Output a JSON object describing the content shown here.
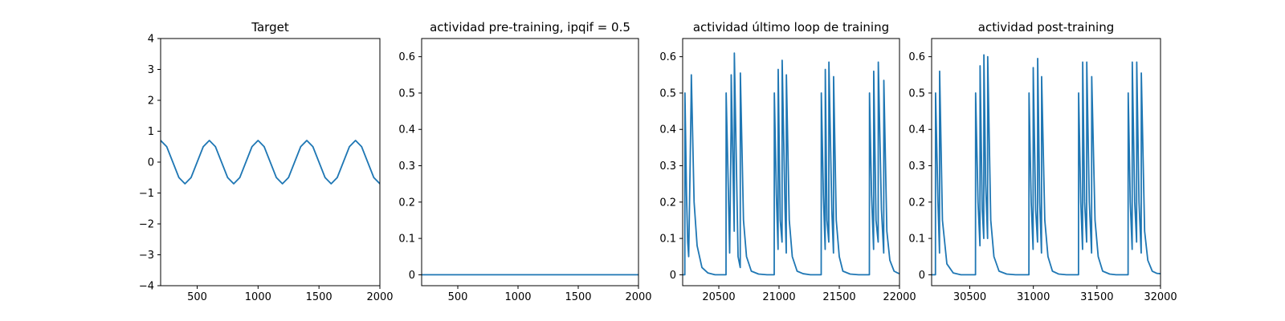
{
  "chart_data": [
    {
      "type": "line",
      "title": "Target",
      "xlabel": "",
      "ylabel": "",
      "xlim": [
        200,
        2000
      ],
      "ylim": [
        -4,
        4
      ],
      "xticks": [
        500,
        1000,
        1500,
        2000
      ],
      "yticks": [
        -4,
        -3,
        -2,
        -1,
        0,
        1,
        2,
        3,
        4
      ],
      "line_color": "#1f77b4",
      "series": [
        {
          "x": [
            200,
            250,
            300,
            350,
            400,
            450,
            500,
            550,
            600,
            650,
            700,
            750,
            800,
            850,
            900,
            950,
            1000,
            1050,
            1100,
            1150,
            1200,
            1250,
            1300,
            1350,
            1400,
            1450,
            1500,
            1550,
            1600,
            1650,
            1700,
            1750,
            1800,
            1850,
            1900,
            1950,
            2000
          ],
          "y": [
            0.7,
            0.5,
            0.0,
            -0.5,
            -0.7,
            -0.5,
            0.0,
            0.5,
            0.7,
            0.5,
            0.0,
            -0.5,
            -0.7,
            -0.5,
            0.0,
            0.5,
            0.7,
            0.5,
            0.0,
            -0.5,
            -0.7,
            -0.5,
            0.0,
            0.5,
            0.7,
            0.5,
            0.0,
            -0.5,
            -0.7,
            -0.5,
            0.0,
            0.5,
            0.7,
            0.5,
            0.0,
            -0.5,
            -0.7
          ]
        }
      ]
    },
    {
      "type": "line",
      "title": "actividad pre-training, ipqif = 0.5",
      "xlabel": "",
      "ylabel": "",
      "xlim": [
        200,
        2000
      ],
      "ylim": [
        -0.03,
        0.65
      ],
      "xticks": [
        500,
        1000,
        1500,
        2000
      ],
      "yticks": [
        0.0,
        0.1,
        0.2,
        0.3,
        0.4,
        0.5,
        0.6
      ],
      "line_color": "#1f77b4",
      "series": [
        {
          "x": [
            200,
            2000
          ],
          "y": [
            0.0,
            0.0
          ]
        }
      ]
    },
    {
      "type": "line",
      "title": "actividad último loop de training",
      "xlabel": "",
      "ylabel": "",
      "xlim": [
        20200,
        22000
      ],
      "ylim": [
        -0.03,
        0.65
      ],
      "xticks": [
        20500,
        21000,
        21500,
        22000
      ],
      "yticks": [
        0.0,
        0.1,
        0.2,
        0.3,
        0.4,
        0.5,
        0.6
      ],
      "line_color": "#1f77b4",
      "series": [
        {
          "x": [
            20200,
            20218,
            20219,
            20232,
            20242,
            20250,
            20262,
            20270,
            20272,
            20295,
            20320,
            20360,
            20410,
            20470,
            20560,
            20561,
            20580,
            20590,
            20602,
            20603,
            20628,
            20629,
            20660,
            20678,
            20679,
            20705,
            20730,
            20770,
            20830,
            20900,
            20960,
            20961,
            20978,
            20992,
            20993,
            21010,
            21025,
            21026,
            21050,
            21060,
            21061,
            21085,
            21110,
            21150,
            21200,
            21260,
            21350,
            21351,
            21368,
            21383,
            21384,
            21398,
            21413,
            21414,
            21438,
            21452,
            21453,
            21475,
            21500,
            21530,
            21590,
            21660,
            21750,
            21751,
            21768,
            21785,
            21786,
            21805,
            21823,
            21824,
            21850,
            21869,
            21870,
            21895,
            21920,
            21955,
            21985,
            22000
          ],
          "y": [
            0.0,
            0.0,
            0.5,
            0.22,
            0.09,
            0.05,
            0.3,
            0.48,
            0.55,
            0.2,
            0.08,
            0.02,
            0.005,
            0.0,
            0.0,
            0.5,
            0.22,
            0.06,
            0.4,
            0.55,
            0.12,
            0.61,
            0.05,
            0.02,
            0.555,
            0.15,
            0.05,
            0.01,
            0.002,
            0.0,
            0.0,
            0.5,
            0.22,
            0.07,
            0.565,
            0.15,
            0.09,
            0.59,
            0.18,
            0.06,
            0.55,
            0.15,
            0.05,
            0.01,
            0.003,
            0.0,
            0.0,
            0.5,
            0.22,
            0.07,
            0.565,
            0.15,
            0.09,
            0.585,
            0.18,
            0.06,
            0.545,
            0.15,
            0.05,
            0.01,
            0.002,
            0.0,
            0.0,
            0.5,
            0.22,
            0.07,
            0.56,
            0.15,
            0.09,
            0.585,
            0.18,
            0.06,
            0.535,
            0.12,
            0.04,
            0.01,
            0.005,
            0.003
          ]
        }
      ]
    },
    {
      "type": "line",
      "title": "actividad post-training",
      "xlabel": "",
      "ylabel": "",
      "xlim": [
        30200,
        32000
      ],
      "ylim": [
        -0.03,
        0.65
      ],
      "xticks": [
        30500,
        31000,
        31500,
        32000
      ],
      "yticks": [
        0.0,
        0.1,
        0.2,
        0.3,
        0.4,
        0.5,
        0.6
      ],
      "line_color": "#1f77b4",
      "series": [
        {
          "x": [
            30200,
            30230,
            30231,
            30250,
            30262,
            30263,
            30285,
            30320,
            30370,
            30430,
            30545,
            30546,
            30565,
            30580,
            30581,
            30598,
            30610,
            30611,
            30625,
            30640,
            30641,
            30665,
            30690,
            30730,
            30790,
            30860,
            30965,
            30966,
            30983,
            30998,
            30999,
            31018,
            31033,
            31034,
            31050,
            31064,
            31065,
            31090,
            31115,
            31150,
            31200,
            31260,
            31355,
            31356,
            31373,
            31387,
            31388,
            31403,
            31419,
            31420,
            31440,
            31458,
            31459,
            31485,
            31510,
            31545,
            31600,
            31650,
            31745,
            31746,
            31762,
            31777,
            31778,
            31797,
            31812,
            31813,
            31831,
            31848,
            31849,
            31875,
            31900,
            31935,
            31970,
            32000
          ],
          "y": [
            0.0,
            0.0,
            0.5,
            0.2,
            0.06,
            0.56,
            0.15,
            0.03,
            0.005,
            0.0,
            0.0,
            0.5,
            0.2,
            0.08,
            0.575,
            0.18,
            0.1,
            0.605,
            0.25,
            0.1,
            0.6,
            0.15,
            0.05,
            0.01,
            0.002,
            0.0,
            0.0,
            0.5,
            0.2,
            0.07,
            0.57,
            0.18,
            0.09,
            0.595,
            0.2,
            0.06,
            0.545,
            0.15,
            0.05,
            0.01,
            0.002,
            0.0,
            0.0,
            0.5,
            0.2,
            0.07,
            0.585,
            0.2,
            0.09,
            0.585,
            0.2,
            0.06,
            0.545,
            0.15,
            0.05,
            0.01,
            0.002,
            0.0,
            0.0,
            0.5,
            0.2,
            0.07,
            0.585,
            0.2,
            0.09,
            0.585,
            0.2,
            0.06,
            0.555,
            0.12,
            0.04,
            0.01,
            0.004,
            0.003
          ]
        }
      ]
    }
  ]
}
